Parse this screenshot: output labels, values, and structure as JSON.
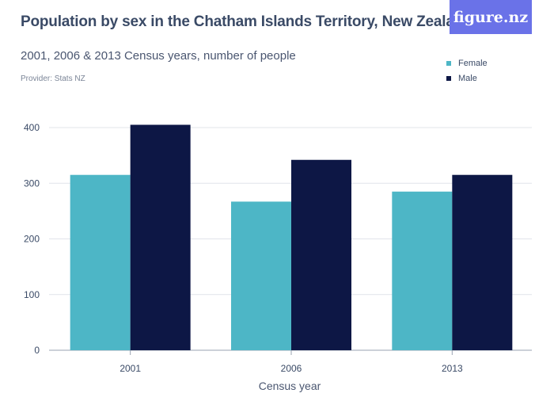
{
  "logo_text": "figure.nz",
  "chart_data": {
    "type": "bar",
    "title": "Population by sex in the Chatham Islands Territory, New Zealand",
    "subtitle": "2001, 2006 & 2013 Census years, number of people",
    "provider": "Provider: Stats NZ",
    "xlabel": "Census year",
    "ylabel": "",
    "categories": [
      "2001",
      "2006",
      "2013"
    ],
    "series": [
      {
        "name": "Female",
        "values": [
          315,
          267,
          285
        ],
        "color": "#4db6c6"
      },
      {
        "name": "Male",
        "values": [
          405,
          342,
          315
        ],
        "color": "#0d1745"
      }
    ],
    "yticks": [
      0,
      100,
      200,
      300,
      400
    ],
    "ylim": [
      0,
      400
    ],
    "grid": true,
    "legend_position": "top-right"
  }
}
